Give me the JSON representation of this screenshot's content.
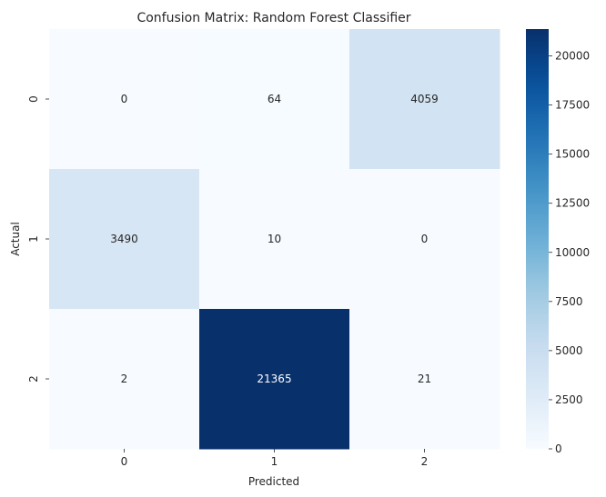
{
  "chart_data": {
    "type": "heatmap",
    "title": "Confusion Matrix: Random Forest Classifier",
    "xlabel": "Predicted",
    "ylabel": "Actual",
    "x_categories": [
      "0",
      "1",
      "2"
    ],
    "y_categories": [
      "0",
      "1",
      "2"
    ],
    "values": [
      [
        0,
        64,
        4059
      ],
      [
        3490,
        10,
        0
      ],
      [
        2,
        21365,
        21
      ]
    ],
    "color_scale": {
      "name": "Blues",
      "min": 0,
      "max": 21365,
      "low_color": "#f7fbff",
      "high_color": "#08306b"
    },
    "colorbar_ticks": [
      0,
      2500,
      5000,
      7500,
      10000,
      12500,
      15000,
      17500,
      20000
    ],
    "colorbar_tick_labels": [
      "0",
      "2500",
      "5000",
      "7500",
      "10000",
      "12500",
      "15000",
      "17500",
      "20000"
    ],
    "annotations": true,
    "grid": false,
    "colorbar_position": "right"
  }
}
